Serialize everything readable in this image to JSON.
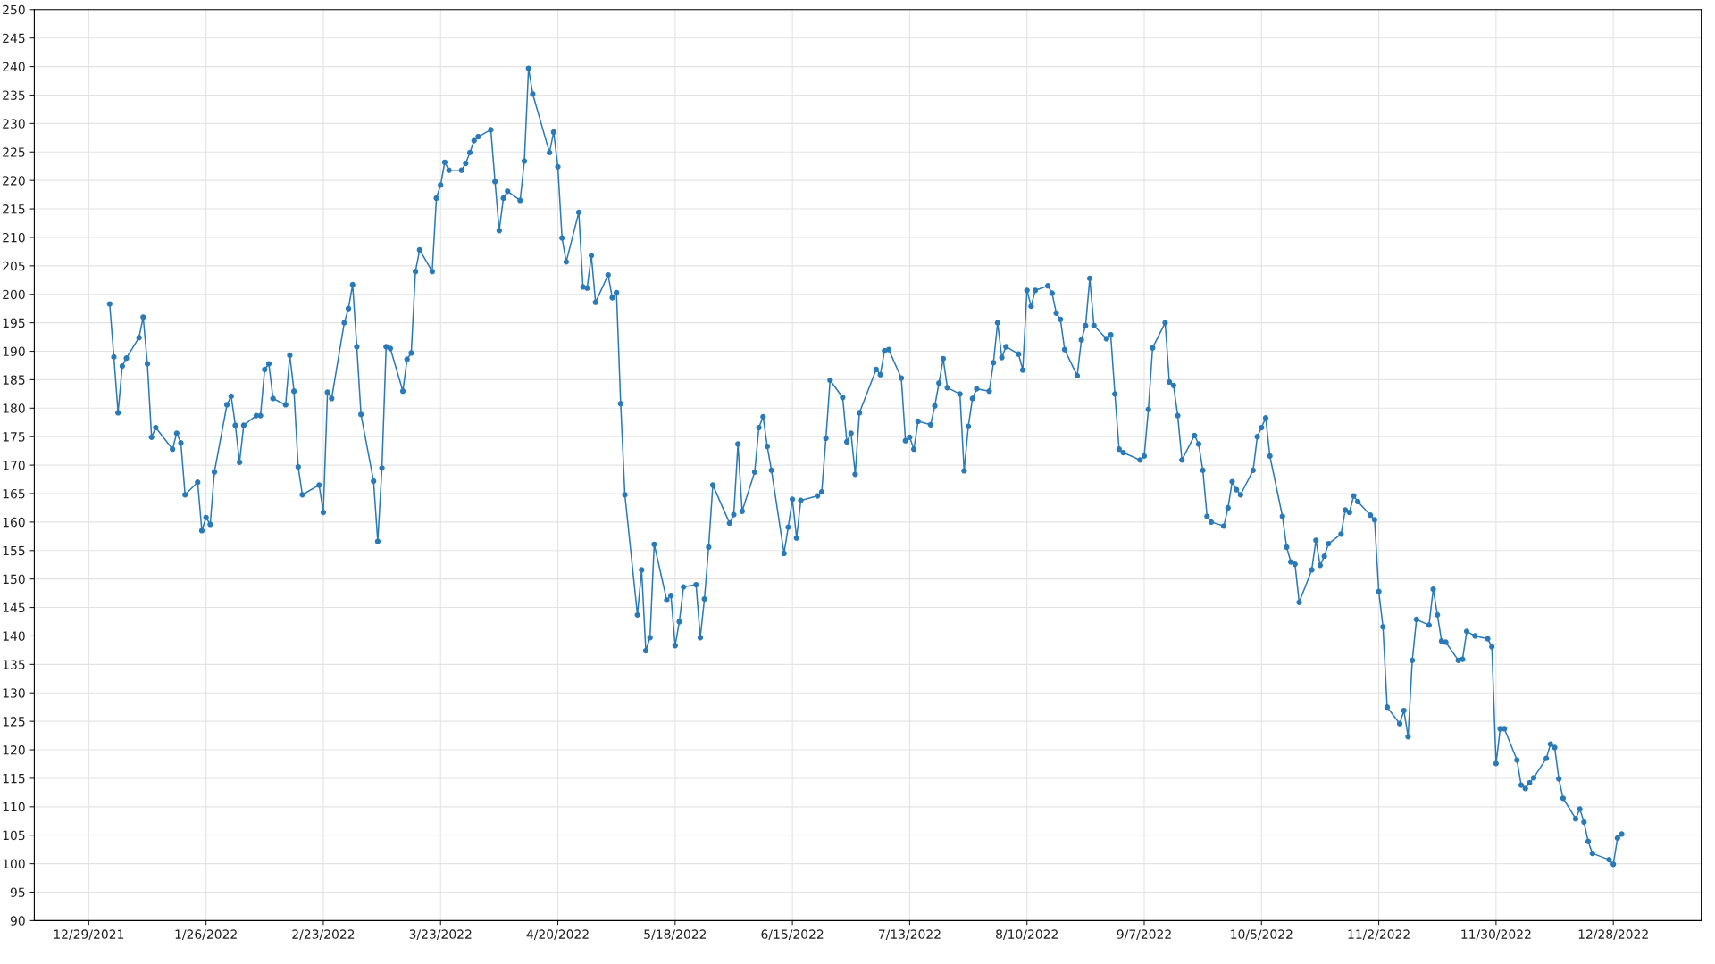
{
  "chart_data": {
    "type": "line",
    "x": [
      "2022-01-03",
      "2022-01-04",
      "2022-01-05",
      "2022-01-06",
      "2022-01-07",
      "2022-01-10",
      "2022-01-11",
      "2022-01-12",
      "2022-01-13",
      "2022-01-14",
      "2022-01-18",
      "2022-01-19",
      "2022-01-20",
      "2022-01-21",
      "2022-01-24",
      "2022-01-25",
      "2022-01-26",
      "2022-01-27",
      "2022-01-28",
      "2022-01-31",
      "2022-02-01",
      "2022-02-02",
      "2022-02-03",
      "2022-02-04",
      "2022-02-07",
      "2022-02-08",
      "2022-02-09",
      "2022-02-10",
      "2022-02-11",
      "2022-02-14",
      "2022-02-15",
      "2022-02-16",
      "2022-02-17",
      "2022-02-18",
      "2022-02-22",
      "2022-02-23",
      "2022-02-24",
      "2022-02-25",
      "2022-02-28",
      "2022-03-01",
      "2022-03-02",
      "2022-03-03",
      "2022-03-04",
      "2022-03-07",
      "2022-03-08",
      "2022-03-09",
      "2022-03-10",
      "2022-03-11",
      "2022-03-14",
      "2022-03-15",
      "2022-03-16",
      "2022-03-17",
      "2022-03-18",
      "2022-03-21",
      "2022-03-22",
      "2022-03-23",
      "2022-03-24",
      "2022-03-25",
      "2022-03-28",
      "2022-03-29",
      "2022-03-30",
      "2022-03-31",
      "2022-04-01",
      "2022-04-04",
      "2022-04-05",
      "2022-04-06",
      "2022-04-07",
      "2022-04-08",
      "2022-04-11",
      "2022-04-12",
      "2022-04-13",
      "2022-04-14",
      "2022-04-18",
      "2022-04-19",
      "2022-04-20",
      "2022-04-21",
      "2022-04-22",
      "2022-04-25",
      "2022-04-26",
      "2022-04-27",
      "2022-04-28",
      "2022-04-29",
      "2022-05-02",
      "2022-05-03",
      "2022-05-04",
      "2022-05-05",
      "2022-05-06",
      "2022-05-09",
      "2022-05-10",
      "2022-05-11",
      "2022-05-12",
      "2022-05-13",
      "2022-05-16",
      "2022-05-17",
      "2022-05-18",
      "2022-05-19",
      "2022-05-20",
      "2022-05-23",
      "2022-05-24",
      "2022-05-25",
      "2022-05-26",
      "2022-05-27",
      "2022-05-31",
      "2022-06-01",
      "2022-06-02",
      "2022-06-03",
      "2022-06-06",
      "2022-06-07",
      "2022-06-08",
      "2022-06-09",
      "2022-06-10",
      "2022-06-13",
      "2022-06-14",
      "2022-06-15",
      "2022-06-16",
      "2022-06-17",
      "2022-06-21",
      "2022-06-22",
      "2022-06-23",
      "2022-06-24",
      "2022-06-27",
      "2022-06-28",
      "2022-06-29",
      "2022-06-30",
      "2022-07-01",
      "2022-07-05",
      "2022-07-06",
      "2022-07-07",
      "2022-07-08",
      "2022-07-11",
      "2022-07-12",
      "2022-07-13",
      "2022-07-14",
      "2022-07-15",
      "2022-07-18",
      "2022-07-19",
      "2022-07-20",
      "2022-07-21",
      "2022-07-22",
      "2022-07-25",
      "2022-07-26",
      "2022-07-27",
      "2022-07-28",
      "2022-07-29",
      "2022-08-01",
      "2022-08-02",
      "2022-08-03",
      "2022-08-04",
      "2022-08-05",
      "2022-08-08",
      "2022-08-09",
      "2022-08-10",
      "2022-08-11",
      "2022-08-12",
      "2022-08-15",
      "2022-08-16",
      "2022-08-17",
      "2022-08-18",
      "2022-08-19",
      "2022-08-22",
      "2022-08-23",
      "2022-08-24",
      "2022-08-25",
      "2022-08-26",
      "2022-08-29",
      "2022-08-30",
      "2022-08-31",
      "2022-09-01",
      "2022-09-02",
      "2022-09-06",
      "2022-09-07",
      "2022-09-08",
      "2022-09-09",
      "2022-09-12",
      "2022-09-13",
      "2022-09-14",
      "2022-09-15",
      "2022-09-16",
      "2022-09-19",
      "2022-09-20",
      "2022-09-21",
      "2022-09-22",
      "2022-09-23",
      "2022-09-26",
      "2022-09-27",
      "2022-09-28",
      "2022-09-29",
      "2022-09-30",
      "2022-10-03",
      "2022-10-04",
      "2022-10-05",
      "2022-10-06",
      "2022-10-07",
      "2022-10-10",
      "2022-10-11",
      "2022-10-12",
      "2022-10-13",
      "2022-10-14",
      "2022-10-17",
      "2022-10-18",
      "2022-10-19",
      "2022-10-20",
      "2022-10-21",
      "2022-10-24",
      "2022-10-25",
      "2022-10-26",
      "2022-10-27",
      "2022-10-28",
      "2022-10-31",
      "2022-11-01",
      "2022-11-02",
      "2022-11-03",
      "2022-11-04",
      "2022-11-07",
      "2022-11-08",
      "2022-11-09",
      "2022-11-10",
      "2022-11-11",
      "2022-11-14",
      "2022-11-15",
      "2022-11-16",
      "2022-11-17",
      "2022-11-18",
      "2022-11-21",
      "2022-11-22",
      "2022-11-23",
      "2022-11-25",
      "2022-11-28",
      "2022-11-29",
      "2022-11-30",
      "2022-12-01",
      "2022-12-02",
      "2022-12-05",
      "2022-12-06",
      "2022-12-07",
      "2022-12-08",
      "2022-12-09",
      "2022-12-12",
      "2022-12-13",
      "2022-12-14",
      "2022-12-15",
      "2022-12-16",
      "2022-12-19",
      "2022-12-20",
      "2022-12-21",
      "2022-12-22",
      "2022-12-23",
      "2022-12-27",
      "2022-12-28",
      "2022-12-29",
      "2022-12-30"
    ],
    "series": [
      {
        "color": "#2a7ab8",
        "values": [
          198.3,
          189,
          179.2,
          187.4,
          188.8,
          192.4,
          196,
          187.8,
          174.9,
          176.6,
          172.8,
          175.6,
          173.9,
          164.8,
          167,
          158.5,
          160.8,
          159.6,
          168.8,
          180.6,
          182.1,
          177,
          170.5,
          177,
          178.7,
          178.7,
          186.8,
          187.8,
          181.7,
          180.6,
          189.3,
          183,
          169.7,
          164.8,
          166.5,
          161.7,
          182.8,
          181.7,
          195,
          197.5,
          201.7,
          190.8,
          178.9,
          167.2,
          156.6,
          169.5,
          190.8,
          190.5,
          183,
          188.6,
          189.7,
          204,
          207.8,
          204,
          216.9,
          219.2,
          223.2,
          221.8,
          221.8,
          223,
          224.9,
          227,
          227.7,
          228.9,
          219.8,
          211.2,
          216.9,
          218.1,
          216.5,
          223.4,
          239.7,
          235.2,
          224.9,
          228.5,
          222.4,
          209.9,
          205.7,
          214.4,
          201.3,
          201.1,
          206.8,
          198.6,
          203.4,
          199.4,
          200.3,
          180.8,
          164.8,
          143.7,
          151.6,
          137.4,
          139.7,
          156.1,
          146.3,
          147.1,
          138.3,
          142.5,
          148.6,
          149,
          139.7,
          146.5,
          155.6,
          166.5,
          159.8,
          161.3,
          173.7,
          161.9,
          168.8,
          176.6,
          178.5,
          173.3,
          169.1,
          154.5,
          159.1,
          164,
          157.2,
          163.8,
          164.6,
          165.3,
          174.7,
          184.9,
          181.9,
          174.1,
          175.6,
          168.4,
          179.2,
          186.8,
          185.9,
          190.1,
          190.3,
          185.3,
          174.3,
          174.9,
          172.8,
          177.7,
          177.1,
          180.4,
          184.4,
          188.7,
          183.6,
          182.5,
          169,
          176.8,
          181.7,
          183.4,
          183,
          188,
          195,
          188.9,
          190.8,
          189.5,
          186.7,
          200.7,
          197.9,
          200.7,
          201.5,
          200.2,
          196.7,
          195.6,
          190.3,
          185.7,
          192,
          194.5,
          202.8,
          194.5,
          192.2,
          192.9,
          182.5,
          172.8,
          172.2,
          170.9,
          171.6,
          179.8,
          190.6,
          195,
          184.6,
          184,
          178.7,
          170.9,
          175.2,
          173.7,
          169.1,
          161,
          160,
          159.3,
          162.5,
          167.1,
          165.7,
          164.8,
          169.1,
          175,
          176.6,
          178.3,
          171.6,
          161,
          155.6,
          153,
          152.6,
          145.9,
          151.6,
          156.8,
          152.4,
          154,
          156.2,
          157.9,
          162.1,
          161.7,
          164.6,
          163.6,
          161.2,
          160.4,
          147.8,
          141.6,
          127.5,
          124.6,
          126.9,
          122.3,
          135.7,
          142.9,
          141.9,
          148.2,
          143.7,
          139.1,
          138.9,
          135.7,
          135.9,
          140.8,
          140,
          139.5,
          138.1,
          117.6,
          123.7,
          123.7,
          118.2,
          113.8,
          113.2,
          114.2,
          115.1,
          118.5,
          121,
          120.4,
          114.9,
          111.5,
          107.9,
          109.6,
          107.3,
          103.9,
          101.8,
          100.7,
          99.9,
          104.5,
          105.2
        ]
      }
    ],
    "xlim": [
      "2021-12-16",
      "2023-01-18"
    ],
    "xticks": [
      {
        "value": "2021-12-29",
        "label": "12/29/2021"
      },
      {
        "value": "2022-01-26",
        "label": "1/26/2022"
      },
      {
        "value": "2022-02-23",
        "label": "2/23/2022"
      },
      {
        "value": "2022-03-23",
        "label": "3/23/2022"
      },
      {
        "value": "2022-04-20",
        "label": "4/20/2022"
      },
      {
        "value": "2022-05-18",
        "label": "5/18/2022"
      },
      {
        "value": "2022-06-15",
        "label": "6/15/2022"
      },
      {
        "value": "2022-07-13",
        "label": "7/13/2022"
      },
      {
        "value": "2022-08-10",
        "label": "8/10/2022"
      },
      {
        "value": "2022-09-07",
        "label": "9/7/2022"
      },
      {
        "value": "2022-10-05",
        "label": "10/5/2022"
      },
      {
        "value": "2022-11-02",
        "label": "11/2/2022"
      },
      {
        "value": "2022-11-30",
        "label": "11/30/2022"
      },
      {
        "value": "2022-12-28",
        "label": "12/28/2022"
      }
    ],
    "ylim": [
      90,
      250
    ],
    "yticks": [
      90,
      95,
      100,
      105,
      110,
      115,
      120,
      125,
      130,
      135,
      140,
      145,
      150,
      155,
      160,
      165,
      170,
      175,
      180,
      185,
      190,
      195,
      200,
      205,
      210,
      215,
      220,
      225,
      230,
      235,
      240,
      245,
      250
    ],
    "grid": true,
    "marker": "circle"
  }
}
